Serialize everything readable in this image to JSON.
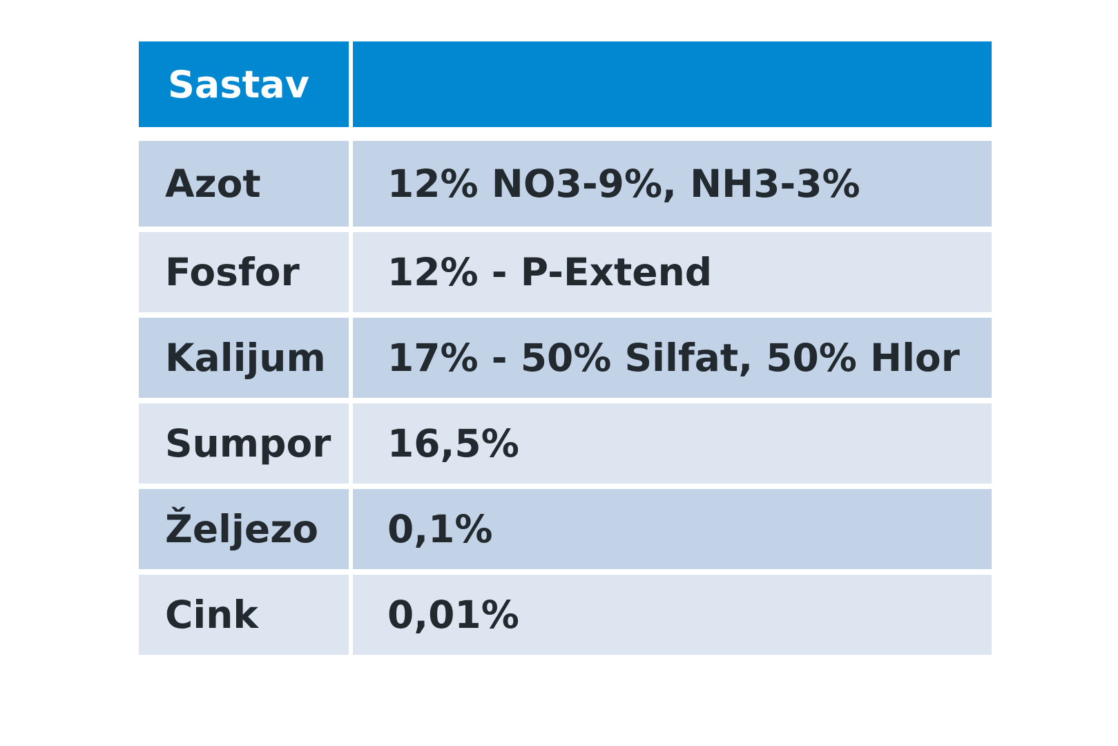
{
  "table": {
    "header": {
      "name": "Sastav",
      "value": ""
    },
    "rows": [
      {
        "name": "Azot",
        "value": "12% NO3-9%, NH3-3%"
      },
      {
        "name": "Fosfor",
        "value": "12% - P-Extend"
      },
      {
        "name": "Kalijum",
        "value": "17% - 50% Silfat, 50% Hlor"
      },
      {
        "name": "Sumpor",
        "value": "16,5%"
      },
      {
        "name": "Željezo",
        "value": "0,1%"
      },
      {
        "name": "Cink",
        "value": "0,01%"
      }
    ]
  },
  "colors": {
    "header_background": "#0288d1",
    "header_text": "#ffffff",
    "row_dark": "#c3d3e7",
    "row_light": "#dde6f0",
    "body_text": "#222a30"
  }
}
